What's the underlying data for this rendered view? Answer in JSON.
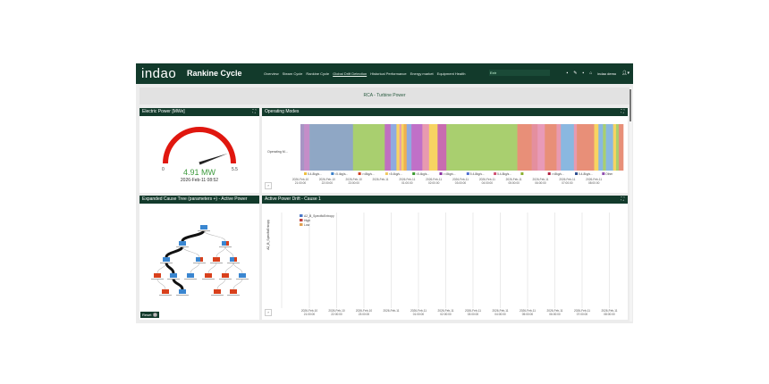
{
  "header": {
    "logo": "indao",
    "title": "Rankine Cycle",
    "nav": [
      "Overview",
      "Steam Cycle",
      "Rankine Cycle",
      "Global Drift Detection",
      "Historical Performance",
      "Energy market",
      "Equipment Health"
    ],
    "nav_active": "Global Drift Detection",
    "search_value": "Extr",
    "user": "indao demo"
  },
  "banner": "RCA - Turbine Power",
  "gauge": {
    "title": "Electric Power [MWe]",
    "value": 4.91,
    "value_label": "4.91 MW",
    "min": "0",
    "max": "5.5",
    "timestamp": "2026-Feb-11 08:52",
    "color": "#e0170f"
  },
  "tree": {
    "title": "Expanded Cause Tree (parameters +) - Active Power",
    "reset_label": "Reset"
  },
  "chart_data": [
    {
      "type": "timeline",
      "title": "Operating Modes",
      "ylabel": "Operating M...",
      "x_ticks": [
        [
          "2026-Feb-10",
          "21:00:00"
        ],
        [
          "2026-Feb-10",
          "22:00:00"
        ],
        [
          "2026-Feb-10",
          "23:00:00"
        ],
        [
          "2026-Feb-11",
          ""
        ],
        [
          "2026-Feb-11",
          "01:00:00"
        ],
        [
          "2026-Feb-11",
          "02:00:00"
        ],
        [
          "2026-Feb-11",
          "03:00:00"
        ],
        [
          "2026-Feb-11",
          "04:00:00"
        ],
        [
          "2026-Feb-11",
          "05:00:00"
        ],
        [
          "2026-Feb-11",
          "06:00:00"
        ],
        [
          "2026-Feb-11",
          "07:00:00"
        ],
        [
          "2026-Feb-11",
          "08:00:00"
        ]
      ],
      "x_range_hours": [
        0,
        12.1
      ],
      "segments": [
        [
          0,
          0.14,
          "#a795c4"
        ],
        [
          0.14,
          0.34,
          "#c48dc8"
        ],
        [
          0.34,
          1.97,
          "#8fa7c5"
        ],
        [
          1.97,
          3.16,
          "#a9cf6f"
        ],
        [
          3.16,
          3.38,
          "#c070c0"
        ],
        [
          3.38,
          3.6,
          "#8faae0"
        ],
        [
          3.6,
          3.71,
          "#f7d462"
        ],
        [
          3.71,
          3.78,
          "#e89ab0"
        ],
        [
          3.78,
          3.87,
          "#f7d462"
        ],
        [
          3.87,
          3.98,
          "#f0b050"
        ],
        [
          3.98,
          4.16,
          "#8faae0"
        ],
        [
          4.16,
          4.57,
          "#c070c8"
        ],
        [
          4.57,
          4.82,
          "#e89ab0"
        ],
        [
          4.82,
          5.14,
          "#f7d462"
        ],
        [
          5.14,
          5.47,
          "#c86cb0"
        ],
        [
          5.47,
          8.13,
          "#a9cf6f"
        ],
        [
          8.13,
          8.67,
          "#e88f78"
        ],
        [
          8.67,
          8.89,
          "#e48f9e"
        ],
        [
          8.89,
          9.16,
          "#e89ab8"
        ],
        [
          9.16,
          9.6,
          "#e88f78"
        ],
        [
          9.6,
          9.76,
          "#e89ab0"
        ],
        [
          9.76,
          10.25,
          "#8ab8e0"
        ],
        [
          10.25,
          10.36,
          "#e89ab0"
        ],
        [
          10.36,
          11.01,
          "#e88f78"
        ],
        [
          11.01,
          11.17,
          "#f7d462"
        ],
        [
          11.17,
          11.34,
          "#8ab8e0"
        ],
        [
          11.34,
          11.45,
          "#a9cf6f"
        ],
        [
          11.45,
          11.72,
          "#8ab8e0"
        ],
        [
          11.72,
          11.83,
          "#f7d462"
        ],
        [
          11.83,
          11.93,
          "#a9cf6f"
        ],
        [
          11.93,
          12.1,
          "#e88f78"
        ]
      ],
      "legend": [
        {
          "label": "5.4-8kg/s...",
          "color": "#f0c040"
        },
        {
          "label": "<5.4kg/s...",
          "color": "#3a7fc8"
        },
        {
          "label": ">=8kg/s...",
          "color": "#d04020"
        },
        {
          "label": "<5.4kg/s...",
          "color": "#f0c860"
        },
        {
          "label": "<5.4kg/s...",
          "color": "#3a9a30"
        },
        {
          "label": ">=8kg/s...",
          "color": "#8a30a0"
        },
        {
          "label": "5.4-8kg/s...",
          "color": "#5070d0"
        },
        {
          "label": "5.4-8kg/s...",
          "color": "#d05070"
        },
        {
          "label": "",
          "color": "#8ab030"
        },
        {
          "label": ">=8kg/s...",
          "color": "#b02040"
        },
        {
          "label": "5.4-8kg/s...",
          "color": "#305090"
        },
        {
          "label": "Other",
          "color": "#9050b0"
        }
      ]
    },
    {
      "type": "line",
      "title": "Active Power Drift - Cause 1",
      "ylabel": "A2_B_SpecificEntropy",
      "legend": [
        {
          "label": "A2_B_SpecificEntropy",
          "color": "#4a78c8"
        },
        {
          "label": "High",
          "color": "#c04040"
        },
        {
          "label": "Low",
          "color": "#e0a050"
        }
      ],
      "x_ticks": [
        [
          "2026-Feb-10",
          "21:00:00"
        ],
        [
          "2026-Feb-10",
          "22:00:00"
        ],
        [
          "2026-Feb-10",
          "23:00:00"
        ],
        [
          "2026-Feb-11",
          ""
        ],
        [
          "2026-Feb-11",
          "01:00:00"
        ],
        [
          "2026-Feb-11",
          "02:00:00"
        ],
        [
          "2026-Feb-11",
          "03:00:00"
        ],
        [
          "2026-Feb-11",
          "04:00:00"
        ],
        [
          "2026-Feb-11",
          "05:00:00"
        ],
        [
          "2026-Feb-11",
          "06:00:00"
        ],
        [
          "2026-Feb-11",
          "07:00:00"
        ],
        [
          "2026-Feb-11",
          "08:00:00"
        ]
      ]
    }
  ],
  "expand_label": "›"
}
